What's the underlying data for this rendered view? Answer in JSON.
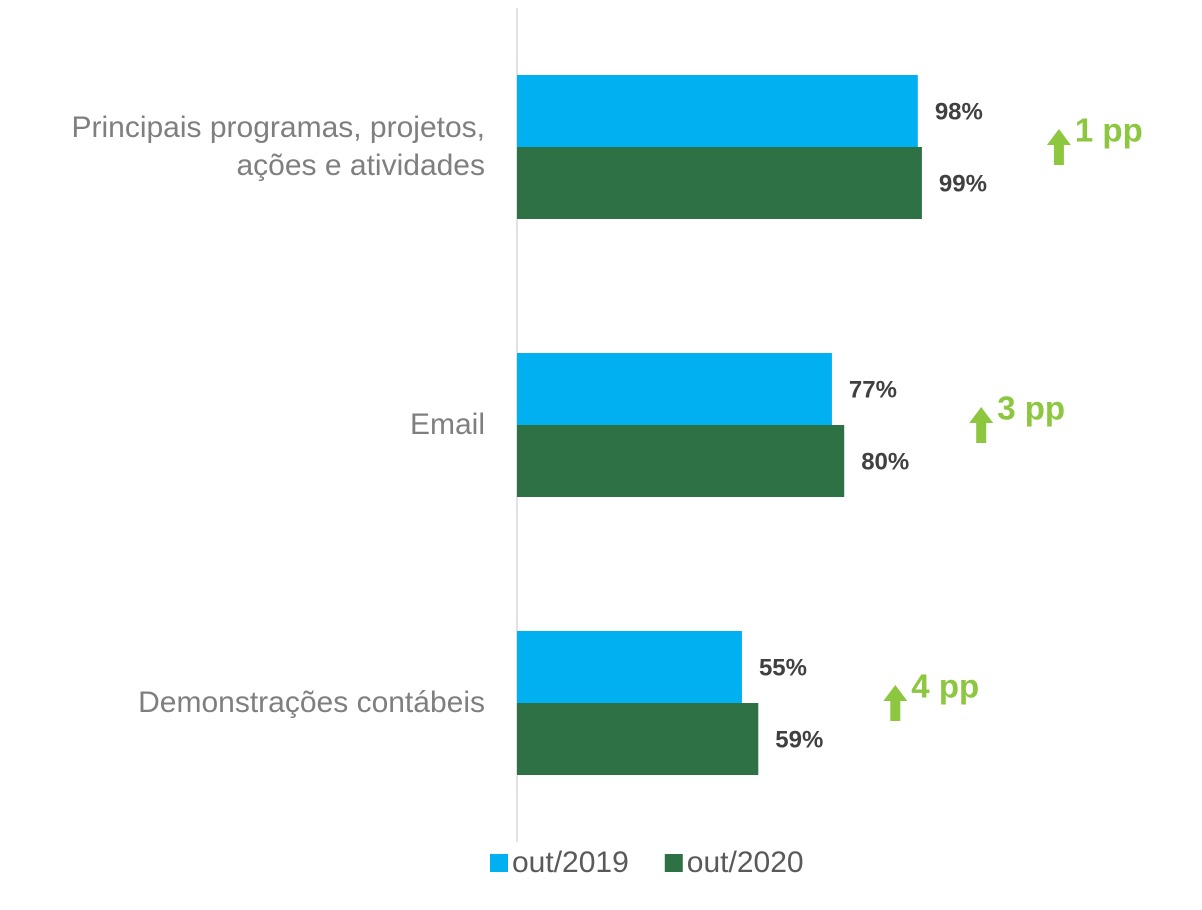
{
  "chart_data": {
    "type": "barh",
    "categories": [
      "Principais programas, projetos, ações e atividades",
      "Email",
      "Demonstrações contábeis"
    ],
    "series": [
      {
        "name": "out/2019",
        "color": "#00b0f0",
        "values": [
          98,
          77,
          55
        ],
        "value_labels": [
          "98%",
          "77%",
          "55%"
        ]
      },
      {
        "name": "out/2020",
        "color": "#2e7145",
        "values": [
          99,
          80,
          59
        ],
        "value_labels": [
          "99%",
          "80%",
          "59%"
        ]
      }
    ],
    "annotations": [
      "1 pp",
      "3 pp",
      "4 pp"
    ],
    "annotation_color": "#8dc63f",
    "xlim": [
      0,
      100
    ],
    "legend": "bottom"
  }
}
